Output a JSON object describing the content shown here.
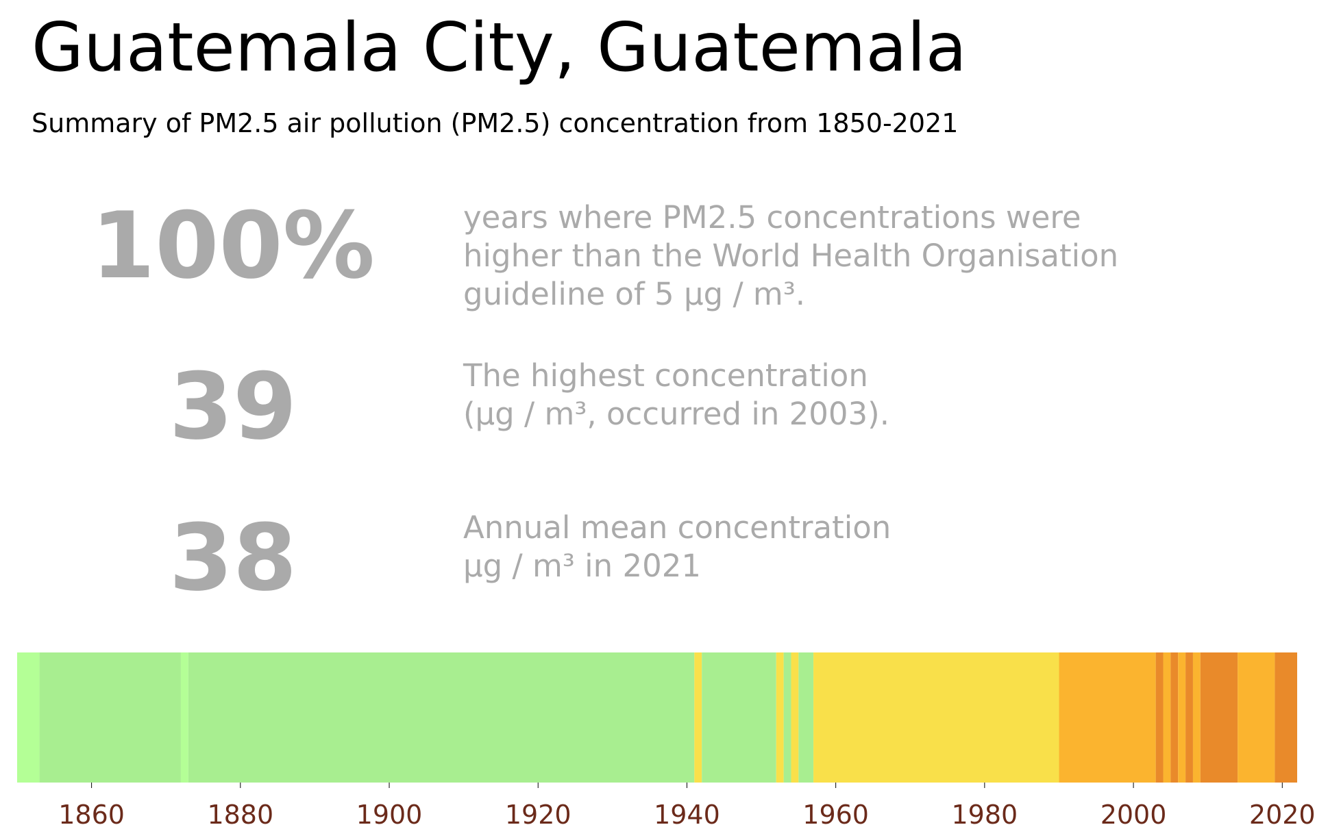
{
  "title": "Guatemala City, Guatemala",
  "subtitle": "Summary of PM2.5 air pollution (PM2.5) concentration from 1850-2021",
  "stats": [
    {
      "value": "100%",
      "lines": [
        "years where PM2.5 concentrations were",
        "higher than the World Health Organisation",
        "guideline of 5 µg / m³."
      ]
    },
    {
      "value": "39",
      "lines": [
        "The highest concentration",
        "(µg / m³, occurred in 2003)."
      ]
    },
    {
      "value": "38",
      "lines": [
        "Annual mean concentration",
        "µg / m³ in 2021"
      ]
    }
  ],
  "colors": {
    "text_muted": "#aaaaaa",
    "tick_label": "#6b2a1a",
    "very_low": "#b4ff96",
    "low": "#a8ee90",
    "moderate": "#f9e04a",
    "high": "#fbb42f",
    "very_high": "#e98a2a"
  },
  "chart_data": {
    "type": "heatmap",
    "title": "",
    "xlabel": "",
    "ylabel": "",
    "xlim": [
      1850,
      2022
    ],
    "xticks": [
      1860,
      1880,
      1900,
      1920,
      1940,
      1960,
      1980,
      2000,
      2020
    ],
    "grid": false,
    "series": [
      {
        "description": "yearly PM2.5 colour category, given as contiguous year runs",
        "runs": [
          {
            "start": 1850,
            "end": 1852,
            "category": "very_low"
          },
          {
            "start": 1853,
            "end": 1871,
            "category": "low"
          },
          {
            "start": 1872,
            "end": 1872,
            "category": "very_low"
          },
          {
            "start": 1873,
            "end": 1940,
            "category": "low"
          },
          {
            "start": 1941,
            "end": 1941,
            "category": "moderate"
          },
          {
            "start": 1942,
            "end": 1951,
            "category": "low"
          },
          {
            "start": 1952,
            "end": 1952,
            "category": "moderate"
          },
          {
            "start": 1953,
            "end": 1953,
            "category": "low"
          },
          {
            "start": 1954,
            "end": 1954,
            "category": "moderate"
          },
          {
            "start": 1955,
            "end": 1956,
            "category": "low"
          },
          {
            "start": 1957,
            "end": 1989,
            "category": "moderate"
          },
          {
            "start": 1990,
            "end": 2002,
            "category": "high"
          },
          {
            "start": 2003,
            "end": 2003,
            "category": "very_high"
          },
          {
            "start": 2004,
            "end": 2004,
            "category": "high"
          },
          {
            "start": 2005,
            "end": 2005,
            "category": "very_high"
          },
          {
            "start": 2006,
            "end": 2006,
            "category": "high"
          },
          {
            "start": 2007,
            "end": 2007,
            "category": "very_high"
          },
          {
            "start": 2008,
            "end": 2008,
            "category": "high"
          },
          {
            "start": 2009,
            "end": 2013,
            "category": "very_high"
          },
          {
            "start": 2014,
            "end": 2018,
            "category": "high"
          },
          {
            "start": 2019,
            "end": 2021,
            "category": "very_high"
          }
        ]
      }
    ]
  }
}
